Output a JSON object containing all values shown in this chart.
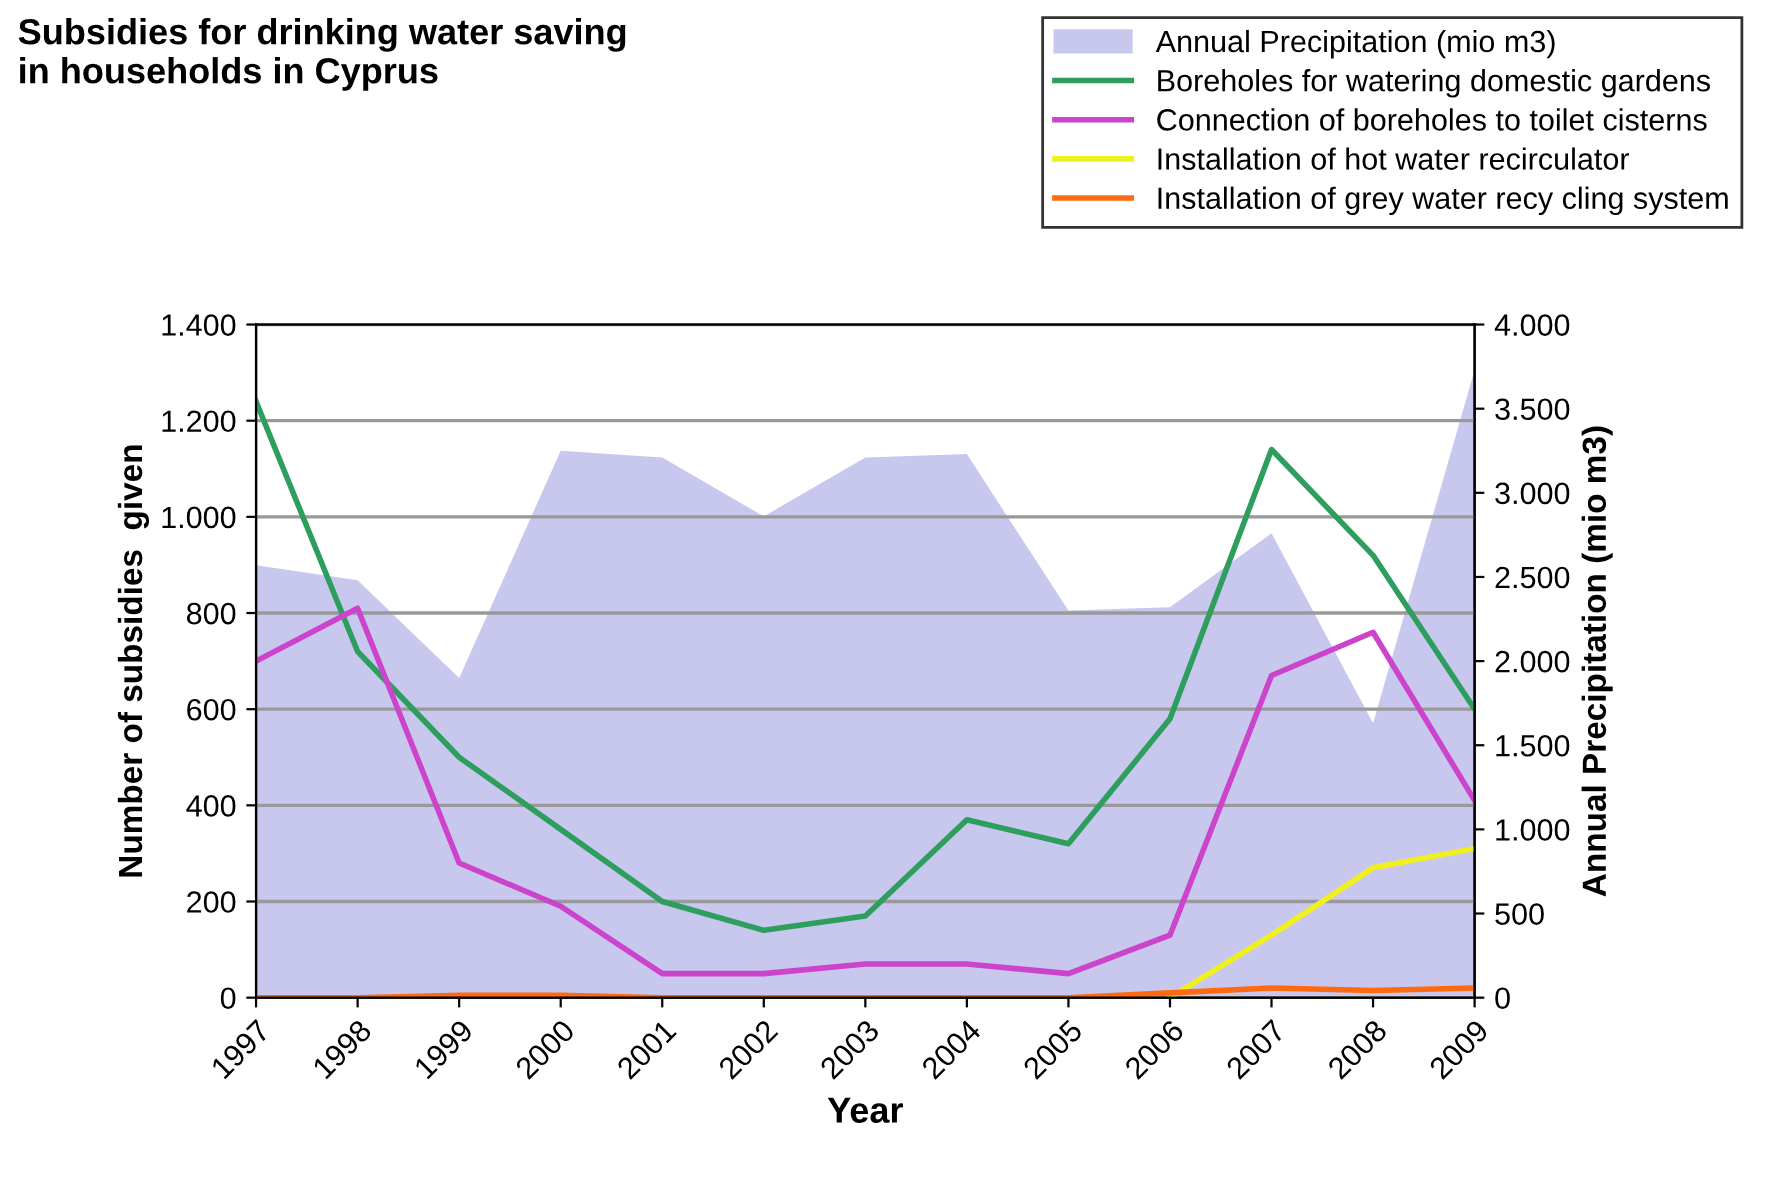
{
  "chart_data": {
    "type": "line",
    "title": "Subsidies for drinking water saving\nin households in Cyprus",
    "xlabel": "Year",
    "ylabel": "Number of subsidies  given",
    "y2label": "Annual Precipitation (mio m3)",
    "categories": [
      "1997",
      "1998",
      "1999",
      "2000",
      "2001",
      "2002",
      "2003",
      "2004",
      "2005",
      "2006",
      "2007",
      "2008",
      "2009"
    ],
    "series": [
      {
        "name": "Annual Precipitation (mio m3)",
        "type": "area",
        "axis": "y2",
        "color": "#c8c8ee",
        "values": [
          2570,
          2480,
          1900,
          3250,
          3210,
          2860,
          3210,
          3230,
          2300,
          2320,
          2760,
          1630,
          3730
        ]
      },
      {
        "name": "Boreholes for watering domestic gardens",
        "color": "#2e9e5e",
        "values": [
          1240,
          720,
          500,
          350,
          200,
          140,
          170,
          370,
          320,
          580,
          1140,
          920,
          600
        ]
      },
      {
        "name": "Connection of boreholes to toilet cisterns",
        "color": "#cc44cc",
        "values": [
          700,
          810,
          280,
          190,
          50,
          50,
          70,
          70,
          50,
          130,
          670,
          760,
          410
        ]
      },
      {
        "name": "Installation of hot water recirculator",
        "color": "#f0f020",
        "values": [
          null,
          null,
          null,
          null,
          null,
          null,
          null,
          null,
          null,
          0,
          130,
          270,
          310
        ]
      },
      {
        "name": "Installation of grey water recy cling system",
        "color": "#ff6a10",
        "values": [
          0,
          0,
          5,
          5,
          0,
          0,
          0,
          0,
          0,
          10,
          20,
          15,
          20
        ]
      }
    ],
    "ylim": [
      0,
      1400
    ],
    "yticks": [
      0,
      200,
      400,
      600,
      800,
      {
        "value": 1000,
        "label": "1.000"
      },
      {
        "value": 1200,
        "label": "1.200"
      },
      {
        "value": 1400,
        "label": "1.400"
      }
    ],
    "y2lim": [
      0,
      4000
    ],
    "y2ticks": [
      0,
      500,
      {
        "value": 1000,
        "label": "1.000"
      },
      {
        "value": 1500,
        "label": "1.500"
      },
      {
        "value": 2000,
        "label": "2.000"
      },
      {
        "value": 2500,
        "label": "2.500"
      },
      {
        "value": 3000,
        "label": "3.000"
      },
      {
        "value": 3500,
        "label": "3.500"
      },
      {
        "value": 4000,
        "label": "4.000"
      }
    ],
    "grid": "y",
    "legend": "top right",
    "marker": "none",
    "line_style": "solid"
  }
}
